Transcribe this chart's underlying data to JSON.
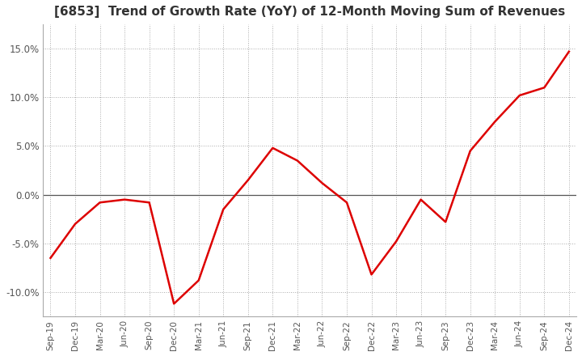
{
  "title": "[6853]  Trend of Growth Rate (YoY) of 12-Month Moving Sum of Revenues",
  "title_fontsize": 11,
  "line_color": "#dd0000",
  "background_color": "#ffffff",
  "grid_color": "#aaaaaa",
  "x_labels": [
    "Sep-19",
    "Dec-19",
    "Mar-20",
    "Jun-20",
    "Sep-20",
    "Dec-20",
    "Mar-21",
    "Jun-21",
    "Sep-21",
    "Dec-21",
    "Mar-22",
    "Jun-22",
    "Sep-22",
    "Dec-22",
    "Mar-23",
    "Jun-23",
    "Sep-23",
    "Dec-23",
    "Mar-24",
    "Jun-24",
    "Sep-24",
    "Dec-24"
  ],
  "y_values": [
    -6.5,
    -3.0,
    -0.8,
    -0.5,
    -0.8,
    -11.2,
    -8.8,
    -1.5,
    1.5,
    4.8,
    3.5,
    1.2,
    -0.8,
    -8.2,
    -4.8,
    -0.5,
    -2.8,
    4.5,
    7.5,
    10.2,
    11.0,
    14.7
  ],
  "ylim": [
    -12.5,
    17.5
  ],
  "yticks": [
    -10.0,
    -5.0,
    0.0,
    5.0,
    10.0,
    15.0
  ]
}
